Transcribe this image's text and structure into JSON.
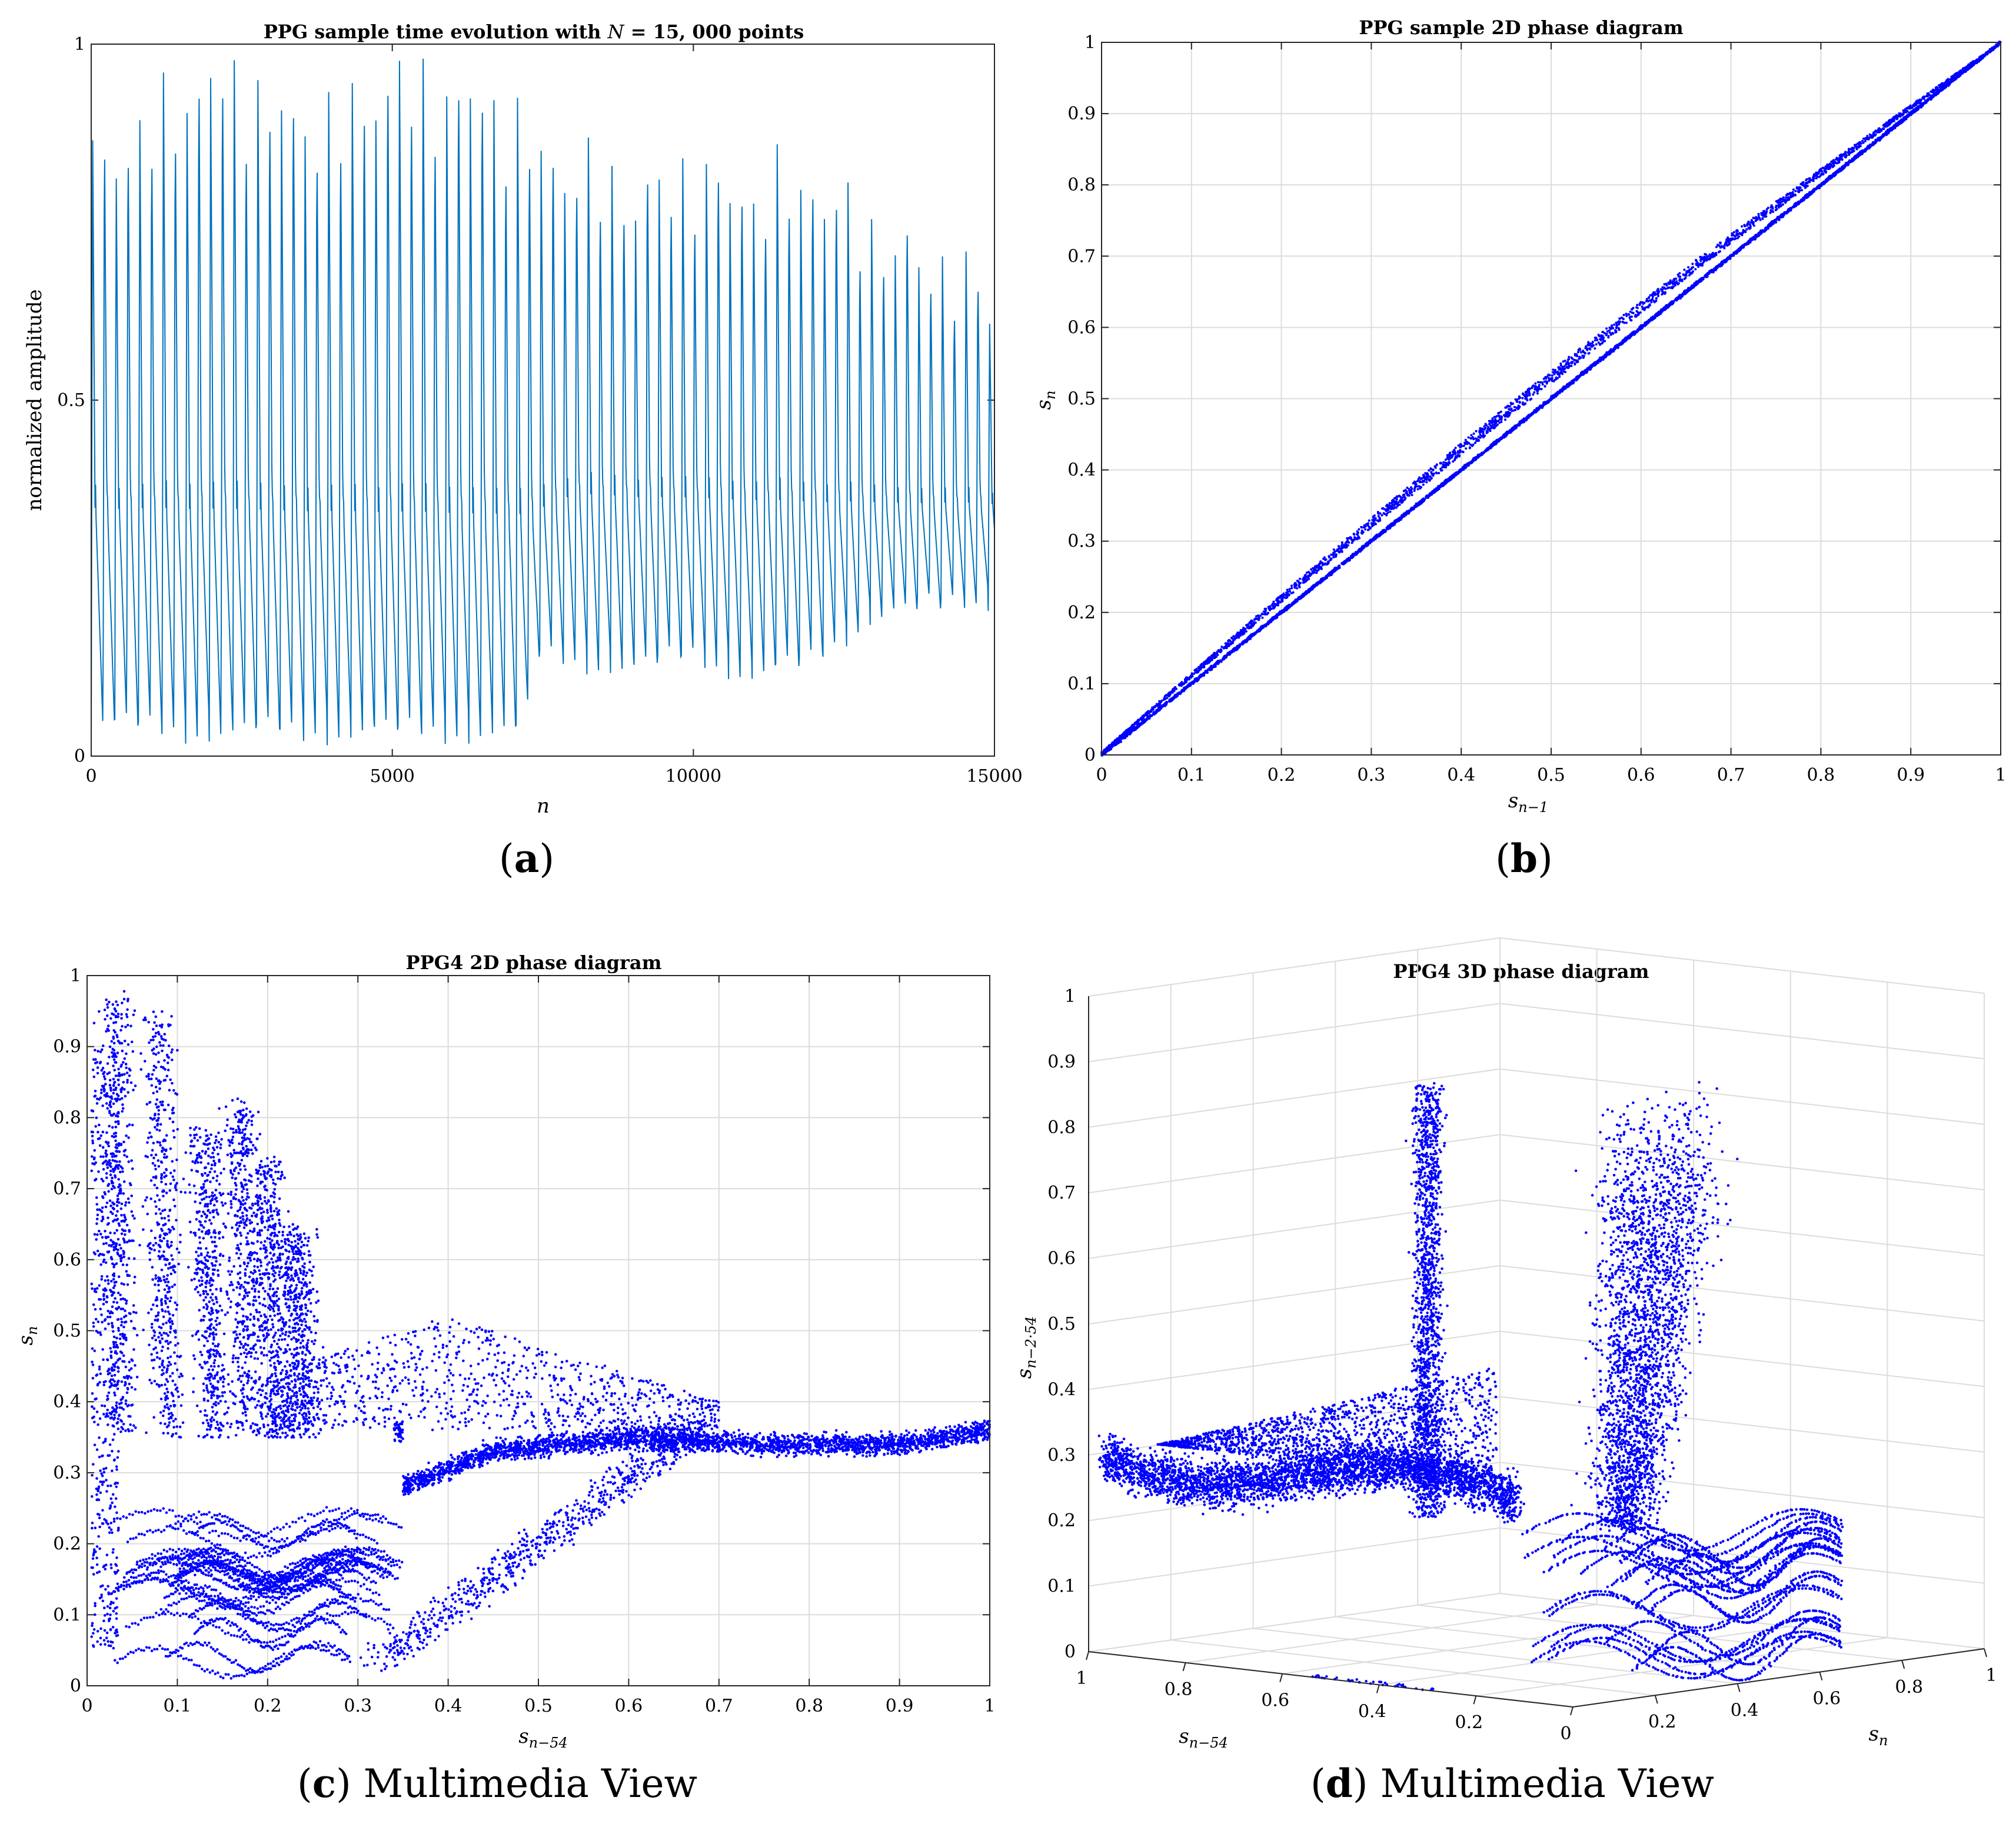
{
  "colors": {
    "line": "#0072BD",
    "dots": "#0000FF",
    "grid": "#dcdcdc",
    "axis": "#262626"
  },
  "panels": {
    "a": {
      "caption_letter": "a",
      "chart_data": {
        "type": "line",
        "title": "PPG sample time evolution with N = 15,000 points",
        "title_parts": [
          "PPG sample time evolution with ",
          "N",
          " = 15, 000 points"
        ],
        "xlabel": "n",
        "ylabel": "normalized amplitude",
        "xlim": [
          0,
          15000
        ],
        "ylim": [
          0,
          1
        ],
        "xticks": [
          0,
          5000,
          10000,
          15000
        ],
        "xtick_labels": [
          "0",
          "5000",
          "10000",
          "15000"
        ],
        "yticks": [
          0,
          0.5,
          1
        ],
        "ytick_labels": [
          "0",
          "0.5",
          "1"
        ],
        "grid": false,
        "beat_period_n": 196,
        "peak_envelope": [
          [
            0,
            0.85
          ],
          [
            1000,
            0.9
          ],
          [
            2000,
            0.98
          ],
          [
            3000,
            0.93
          ],
          [
            4000,
            0.9
          ],
          [
            5000,
            0.98
          ],
          [
            5500,
            0.95
          ],
          [
            6500,
            0.95
          ],
          [
            7200,
            0.88
          ],
          [
            8000,
            0.84
          ],
          [
            9000,
            0.8
          ],
          [
            10000,
            0.83
          ],
          [
            11000,
            0.8
          ],
          [
            12000,
            0.82
          ],
          [
            13000,
            0.74
          ],
          [
            14000,
            0.7
          ],
          [
            15000,
            0.65
          ]
        ],
        "trough_envelope": [
          [
            0,
            0.04
          ],
          [
            2000,
            0.03
          ],
          [
            3000,
            0.03
          ],
          [
            5000,
            0.03
          ],
          [
            6000,
            0.03
          ],
          [
            7200,
            0.03
          ],
          [
            7400,
            0.14
          ],
          [
            9000,
            0.12
          ],
          [
            10000,
            0.14
          ],
          [
            11000,
            0.11
          ],
          [
            12000,
            0.13
          ],
          [
            13000,
            0.2
          ],
          [
            15000,
            0.22
          ]
        ],
        "notch_level": [
          [
            0,
            0.34
          ],
          [
            7200,
            0.33
          ],
          [
            8000,
            0.36
          ],
          [
            12000,
            0.35
          ],
          [
            15000,
            0.35
          ]
        ]
      }
    },
    "b": {
      "caption_letter": "b",
      "chart_data": {
        "type": "scatter",
        "title": "PPG sample 2D phase diagram",
        "xlabel": "s_{n-1}",
        "ylabel": "s_n",
        "xlim": [
          0,
          1
        ],
        "ylim": [
          0,
          1
        ],
        "xticks": [
          0,
          0.1,
          0.2,
          0.3,
          0.4,
          0.5,
          0.6,
          0.7,
          0.8,
          0.9,
          1
        ],
        "xtick_labels": [
          "0",
          "0.1",
          "0.2",
          "0.3",
          "0.4",
          "0.5",
          "0.6",
          "0.7",
          "0.8",
          "0.9",
          "1"
        ],
        "yticks": [
          0,
          0.1,
          0.2,
          0.3,
          0.4,
          0.5,
          0.6,
          0.7,
          0.8,
          0.9,
          1
        ],
        "ytick_labels": [
          "0",
          "0.1",
          "0.2",
          "0.3",
          "0.4",
          "0.5",
          "0.6",
          "0.7",
          "0.8",
          "0.9",
          "1"
        ],
        "grid": true,
        "series": [
          {
            "name": "diagonal band",
            "x_range": [
              0,
              1
            ],
            "y_offset_range": [
              -0.004,
              0.004
            ]
          },
          {
            "name": "upper band",
            "x_range": [
              0,
              0.97
            ],
            "y_offset_max": 0.035
          }
        ]
      }
    },
    "c": {
      "caption_letter": "c",
      "caption_text": " Multimedia View",
      "chart_data": {
        "type": "scatter",
        "title": "PPG4 2D phase diagram",
        "xlabel": "s_{n-54}",
        "ylabel": "s_n",
        "xlim": [
          0,
          1
        ],
        "ylim": [
          0,
          1
        ],
        "xticks": [
          0,
          0.1,
          0.2,
          0.3,
          0.4,
          0.5,
          0.6,
          0.7,
          0.8,
          0.9,
          1
        ],
        "xtick_labels": [
          "0",
          "0.1",
          "0.2",
          "0.3",
          "0.4",
          "0.5",
          "0.6",
          "0.7",
          "0.8",
          "0.9",
          "1"
        ],
        "yticks": [
          0,
          0.1,
          0.2,
          0.3,
          0.4,
          0.5,
          0.6,
          0.7,
          0.8,
          0.9,
          1
        ],
        "ytick_labels": [
          "0",
          "0.1",
          "0.2",
          "0.3",
          "0.4",
          "0.5",
          "0.6",
          "0.7",
          "0.8",
          "0.9",
          "1"
        ],
        "grid": true,
        "series": [
          {
            "name": "descending plumes",
            "peak_points": [
              [
                0.03,
                0.98
              ],
              [
                0.08,
                0.95
              ],
              [
                0.13,
                0.79
              ],
              [
                0.17,
                0.83
              ],
              [
                0.2,
                0.75
              ],
              [
                0.23,
                0.65
              ]
            ]
          },
          {
            "name": "plateau",
            "points": [
              [
                0.35,
                0.28
              ],
              [
                0.45,
                0.33
              ],
              [
                0.6,
                0.35
              ],
              [
                0.75,
                0.34
              ],
              [
                0.9,
                0.34
              ],
              [
                1.0,
                0.36
              ]
            ]
          },
          {
            "name": "low loops",
            "x_range": [
              0.02,
              0.35
            ],
            "y_range": [
              0.0,
              0.24
            ]
          }
        ]
      }
    },
    "d": {
      "caption_letter": "d",
      "caption_text": " Multimedia View",
      "chart_data": {
        "type": "scatter",
        "dimensions": 3,
        "title": "PPG4 3D phase diagram",
        "xlabel": "s_{n-54}",
        "ylabel": "s_n",
        "zlabel": "s_{n-2·54}",
        "zlim": [
          0,
          1
        ],
        "zticks": [
          0,
          0.1,
          0.2,
          0.3,
          0.4,
          0.5,
          0.6,
          0.7,
          0.8,
          0.9,
          1
        ],
        "ztick_labels": [
          "0",
          "0.1",
          "0.2",
          "0.3",
          "0.4",
          "0.5",
          "0.6",
          "0.7",
          "0.8",
          "0.9",
          "1"
        ],
        "xtick_labels": [
          "1",
          "0.8",
          "0.6",
          "0.4",
          "0.2",
          "0"
        ],
        "ytick_labels": [
          "0.2",
          "0.4",
          "0.6",
          "0.8",
          "1"
        ],
        "grid": true,
        "series": [
          {
            "name": "vertical lobe"
          },
          {
            "name": "left arm"
          },
          {
            "name": "base loops"
          }
        ]
      }
    }
  }
}
